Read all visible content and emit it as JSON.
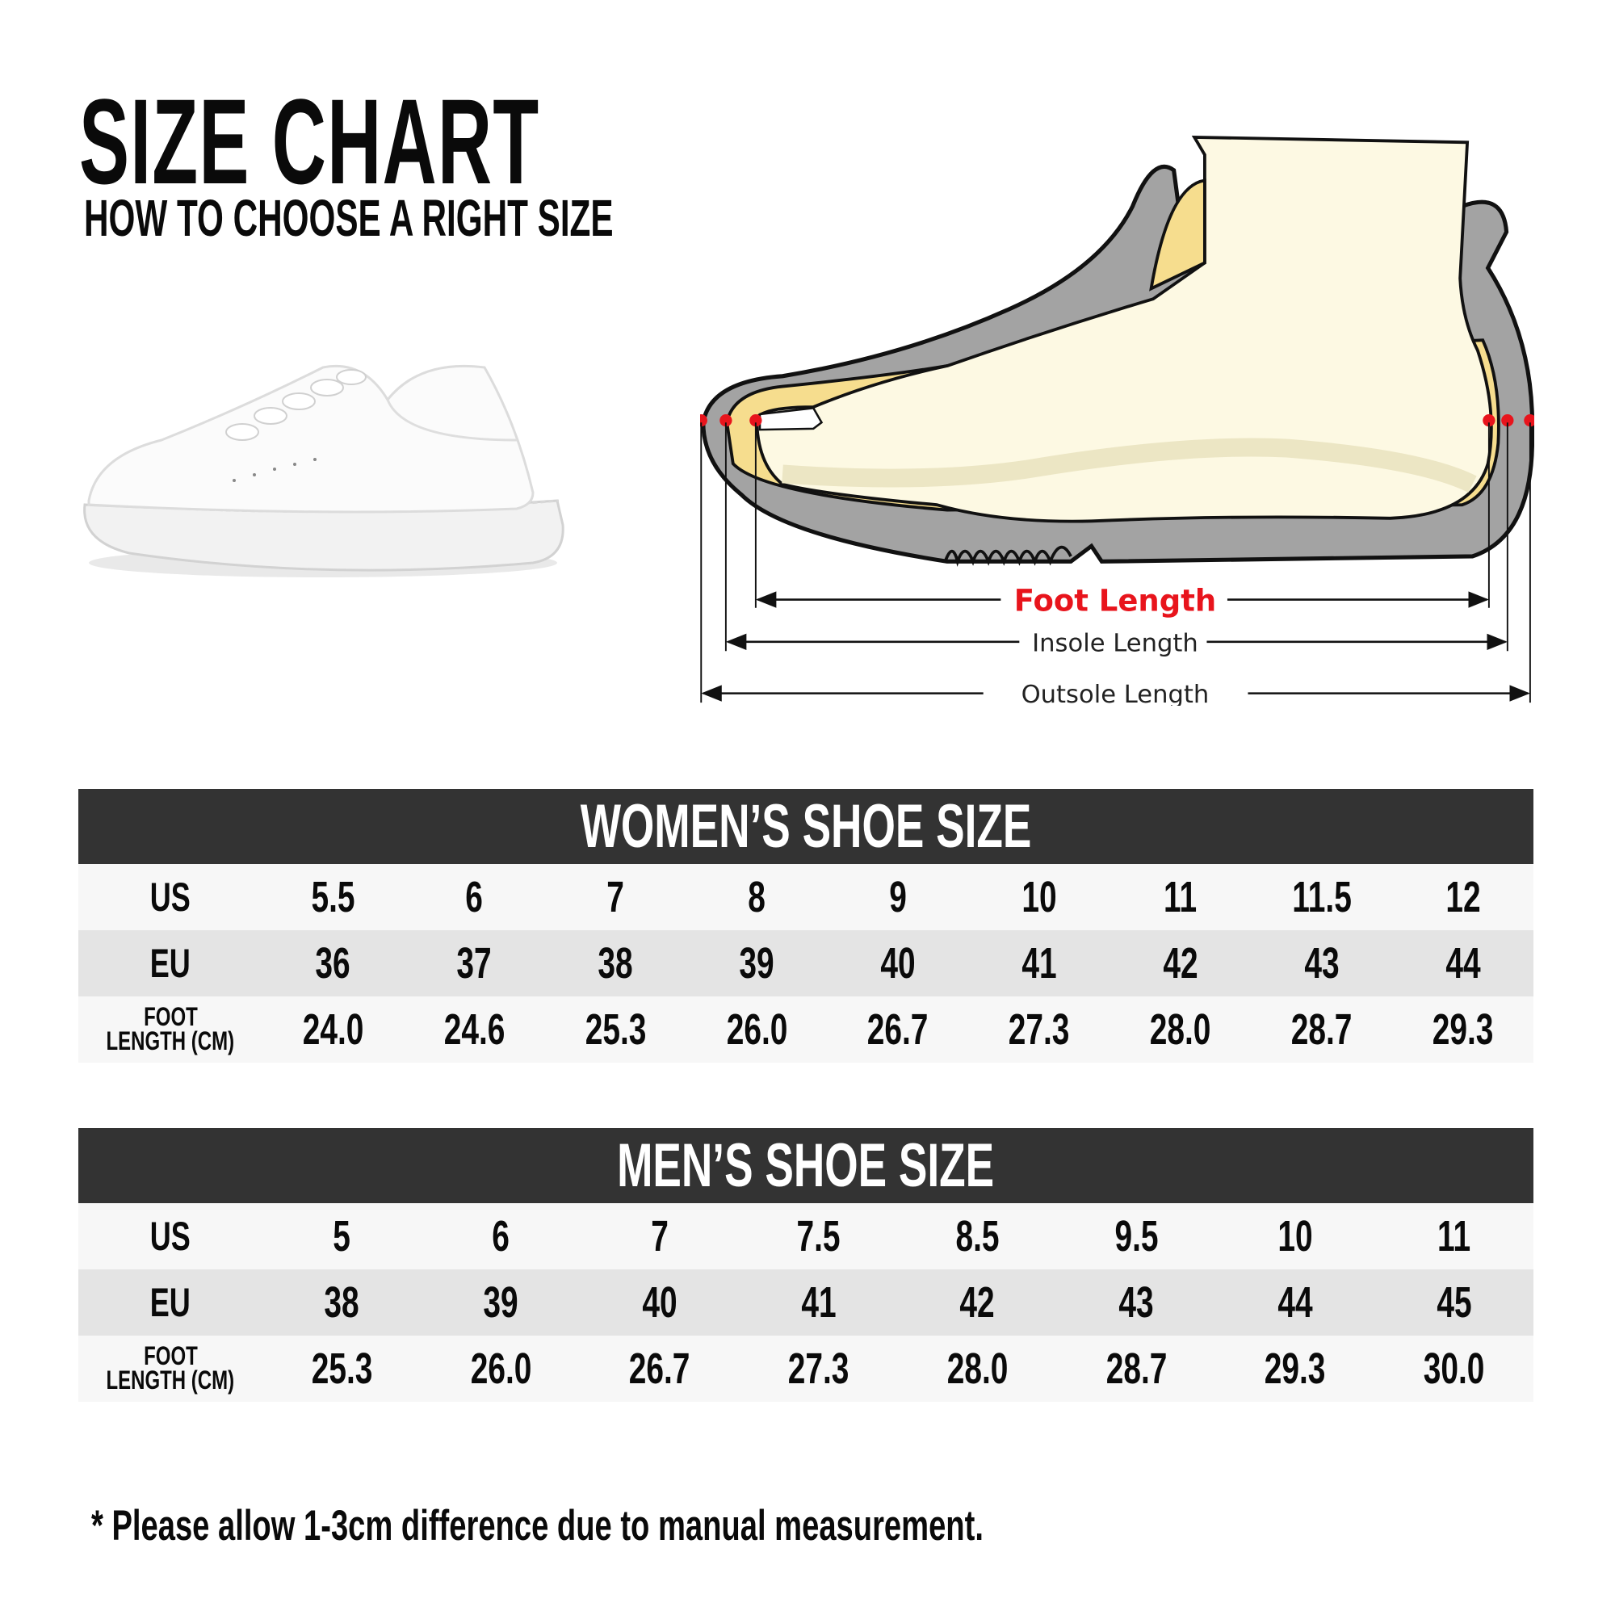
{
  "header": {
    "title": "SIZE CHART",
    "subtitle": "HOW TO CHOOSE A RIGHT SIZE"
  },
  "diagram": {
    "foot_length_label": "Foot Length",
    "insole_length_label": "Insole Length",
    "outsole_length_label": "Outsole Length",
    "colors": {
      "foot_length": "#e8141c",
      "outsole": "#a3a3a3",
      "insole": "#f6dd8e",
      "foot": "#fdf9e3"
    }
  },
  "women": {
    "title": "WOMEN’S SHOE SIZE",
    "row_labels": {
      "us": "US",
      "eu": "EU",
      "foot_line1": "FOOT",
      "foot_line2": "LENGTH (CM)"
    },
    "us": [
      "5.5",
      "6",
      "7",
      "8",
      "9",
      "10",
      "11",
      "11.5",
      "12"
    ],
    "eu": [
      "36",
      "37",
      "38",
      "39",
      "40",
      "41",
      "42",
      "43",
      "44"
    ],
    "foot_length_cm": [
      "24.0",
      "24.6",
      "25.3",
      "26.0",
      "26.7",
      "27.3",
      "28.0",
      "28.7",
      "29.3"
    ]
  },
  "men": {
    "title": "MEN’S SHOE SIZE",
    "row_labels": {
      "us": "US",
      "eu": "EU",
      "foot_line1": "FOOT",
      "foot_line2": "LENGTH (CM)"
    },
    "us": [
      "5",
      "6",
      "7",
      "7.5",
      "8.5",
      "9.5",
      "10",
      "11"
    ],
    "eu": [
      "38",
      "39",
      "40",
      "41",
      "42",
      "43",
      "44",
      "45"
    ],
    "foot_length_cm": [
      "25.3",
      "26.0",
      "26.7",
      "27.3",
      "28.0",
      "28.7",
      "29.3",
      "30.0"
    ]
  },
  "footnote": "* Please allow 1-3cm difference due to manual measurement.",
  "colors": {
    "table_header": "#333333",
    "row_light": "#f7f7f7",
    "row_dark": "#e4e4e4"
  }
}
